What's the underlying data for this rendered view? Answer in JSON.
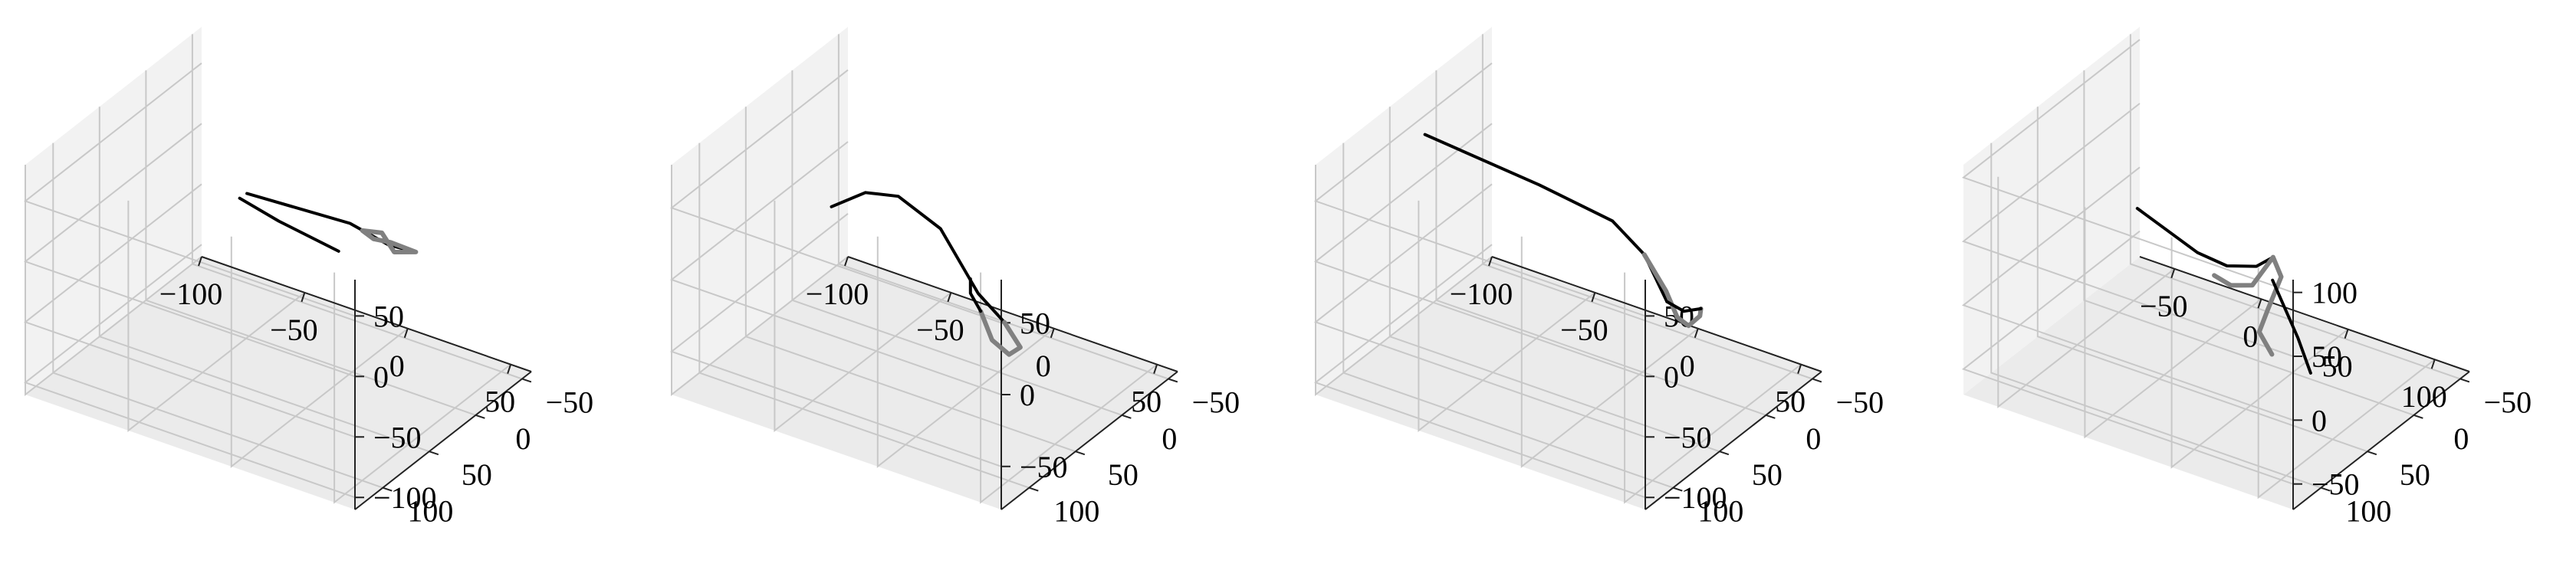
{
  "chart_data": [
    {
      "type": "line3d",
      "xlim": [
        -100,
        60
      ],
      "ylim": [
        -60,
        130
      ],
      "zlim": [
        -110,
        80
      ],
      "x_ticks": [
        "−100",
        "−50",
        "0",
        "50"
      ],
      "y_ticks": [
        "−50",
        "0",
        "50",
        "100"
      ],
      "z_ticks": [
        "−100",
        "−50",
        "0",
        "50"
      ],
      "series": [
        {
          "color": "#000000",
          "points": [
            [
              -60,
              -20,
              -10
            ],
            [
              -10,
              -20,
              -5
            ],
            [
              20,
              5,
              10
            ],
            [
              40,
              20,
              25
            ]
          ]
        },
        {
          "color": "#000000",
          "points": [
            [
              -50,
              10,
              10
            ],
            [
              -40,
              -10,
              -15
            ],
            [
              -20,
              -30,
              -40
            ]
          ]
        },
        {
          "color": "#808080",
          "points": [
            [
              10,
              -10,
              5
            ],
            [
              25,
              10,
              10
            ],
            [
              40,
              20,
              25
            ],
            [
              30,
              25,
              30
            ],
            [
              15,
              10,
              15
            ],
            [
              5,
              0,
              10
            ],
            [
              10,
              -10,
              5
            ]
          ]
        }
      ]
    },
    {
      "type": "line3d",
      "xlim": [
        -100,
        60
      ],
      "ylim": [
        -60,
        130
      ],
      "zlim": [
        -80,
        80
      ],
      "x_ticks": [
        "−100",
        "−50",
        "0",
        "50"
      ],
      "y_ticks": [
        "−50",
        "0",
        "50",
        "100"
      ],
      "z_ticks": [
        "−50",
        "0",
        "50"
      ],
      "series": [
        {
          "color": "#000000",
          "points": [
            [
              -90,
              -20,
              -20
            ],
            [
              -60,
              10,
              20
            ],
            [
              -35,
              30,
              40
            ],
            [
              -10,
              40,
              35
            ],
            [
              15,
              55,
              10
            ],
            [
              30,
              60,
              0
            ]
          ]
        },
        {
          "color": "#808080",
          "points": [
            [
              30,
              60,
              0
            ],
            [
              40,
              65,
              -10
            ],
            [
              30,
              55,
              -25
            ],
            [
              15,
              40,
              -30
            ],
            [
              5,
              30,
              -20
            ]
          ]
        },
        {
          "color": "#000000",
          "points": [
            [
              5,
              30,
              -20
            ],
            [
              0,
              30,
              -10
            ],
            [
              0,
              30,
              0
            ]
          ]
        }
      ]
    },
    {
      "type": "line3d",
      "xlim": [
        -100,
        60
      ],
      "ylim": [
        -60,
        130
      ],
      "zlim": [
        -110,
        80
      ],
      "x_ticks": [
        "−100",
        "−50",
        "0",
        "50"
      ],
      "y_ticks": [
        "−50",
        "0",
        "50",
        "100"
      ],
      "z_ticks": [
        "−100",
        "−50",
        "0",
        "50"
      ],
      "series": [
        {
          "color": "#000000",
          "points": [
            [
              -110,
              -10,
              15
            ],
            [
              -50,
              0,
              15
            ],
            [
              -10,
              10,
              15
            ],
            [
              10,
              20,
              5
            ],
            [
              30,
              40,
              -10
            ]
          ]
        },
        {
          "color": "#808080",
          "points": [
            [
              10,
              20,
              5
            ],
            [
              25,
              30,
              -10
            ],
            [
              35,
              40,
              -20
            ],
            [
              45,
              50,
              -15
            ],
            [
              55,
              60,
              5
            ],
            [
              60,
              70,
              20
            ]
          ]
        },
        {
          "color": "#000000",
          "points": [
            [
              30,
              40,
              -10
            ],
            [
              45,
              55,
              0
            ],
            [
              60,
              70,
              20
            ]
          ]
        }
      ]
    },
    {
      "type": "line3d",
      "xlim": [
        -70,
        120
      ],
      "ylim": [
        -60,
        130
      ],
      "zlim": [
        -70,
        110
      ],
      "x_ticks": [
        "−50",
        "0",
        "50",
        "100"
      ],
      "y_ticks": [
        "−50",
        "0",
        "50",
        "100"
      ],
      "z_ticks": [
        "−50",
        "0",
        "50",
        "100"
      ],
      "series": [
        {
          "color": "#000000",
          "points": [
            [
              -50,
              -20,
              0
            ],
            [
              -10,
              -10,
              -10
            ],
            [
              15,
              5,
              0
            ],
            [
              40,
              20,
              20
            ],
            [
              55,
              30,
              40
            ]
          ]
        },
        {
          "color": "#808080",
          "points": [
            [
              5,
              0,
              -15
            ],
            [
              20,
              10,
              -10
            ],
            [
              35,
              15,
              0
            ],
            [
              55,
              30,
              40
            ],
            [
              65,
              40,
              35
            ],
            [
              60,
              45,
              10
            ],
            [
              55,
              45,
              -10
            ],
            [
              65,
              50,
              -20
            ]
          ]
        },
        {
          "color": "#000000",
          "points": [
            [
              60,
              40,
              30
            ],
            [
              80,
              50,
              0
            ],
            [
              90,
              55,
              -20
            ]
          ]
        }
      ]
    }
  ]
}
